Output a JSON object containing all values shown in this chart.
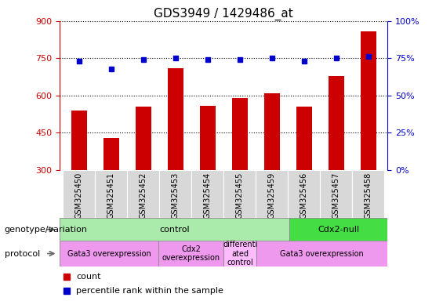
{
  "title": "GDS3949 / 1429486_at",
  "samples": [
    "GSM325450",
    "GSM325451",
    "GSM325452",
    "GSM325453",
    "GSM325454",
    "GSM325455",
    "GSM325459",
    "GSM325456",
    "GSM325457",
    "GSM325458"
  ],
  "counts": [
    540,
    430,
    555,
    710,
    560,
    590,
    610,
    555,
    680,
    860
  ],
  "percentiles": [
    73,
    68,
    74,
    75,
    74,
    74,
    75,
    73,
    75,
    76
  ],
  "ylim_left": [
    300,
    900
  ],
  "ylim_right": [
    0,
    100
  ],
  "yticks_left": [
    300,
    450,
    600,
    750,
    900
  ],
  "yticks_right": [
    0,
    25,
    50,
    75,
    100
  ],
  "bar_color": "#cc0000",
  "dot_color": "#0000cc",
  "bar_width": 0.5,
  "title_fontsize": 11,
  "genotype_groups": [
    {
      "label": "control",
      "start": 0,
      "end": 6,
      "color": "#aaeaaa"
    },
    {
      "label": "Cdx2-null",
      "start": 7,
      "end": 9,
      "color": "#44dd44"
    }
  ],
  "protocol_groups": [
    {
      "label": "Gata3 overexpression",
      "start": 0,
      "end": 2,
      "color": "#ee99ee"
    },
    {
      "label": "Cdx2\noverexpression",
      "start": 3,
      "end": 4,
      "color": "#ee99ee"
    },
    {
      "label": "differenti\nated\ncontrol",
      "start": 5,
      "end": 5,
      "color": "#ffbbff"
    },
    {
      "label": "Gata3 overexpression",
      "start": 6,
      "end": 9,
      "color": "#ee99ee"
    }
  ],
  "legend_count_color": "#cc0000",
  "legend_pct_color": "#0000cc",
  "legend_count_label": "count",
  "legend_pct_label": "percentile rank within the sample",
  "label_genotype": "genotype/variation",
  "label_protocol": "protocol",
  "tick_bg_color": "#d8d8d8"
}
